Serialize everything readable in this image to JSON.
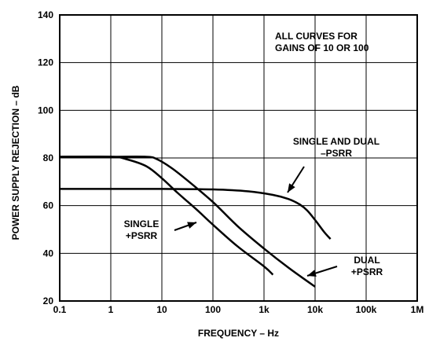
{
  "chart_data": {
    "type": "line",
    "title": "",
    "xlabel": "FREQUENCY – Hz",
    "ylabel": "POWER SUPPLY REJECTION – dB",
    "x_scale": "log",
    "xlim": [
      0.1,
      1000000
    ],
    "ylim": [
      20,
      140
    ],
    "grid": true,
    "x_ticks": [
      {
        "value": 0.1,
        "label": "0.1"
      },
      {
        "value": 1,
        "label": "1"
      },
      {
        "value": 10,
        "label": "10"
      },
      {
        "value": 100,
        "label": "100"
      },
      {
        "value": 1000,
        "label": "1k"
      },
      {
        "value": 10000,
        "label": "10k"
      },
      {
        "value": 100000,
        "label": "100k"
      },
      {
        "value": 1000000,
        "label": "1M"
      }
    ],
    "y_ticks": [
      {
        "value": 20,
        "label": "20"
      },
      {
        "value": 40,
        "label": "40"
      },
      {
        "value": 60,
        "label": "60"
      },
      {
        "value": 80,
        "label": "80"
      },
      {
        "value": 100,
        "label": "100"
      },
      {
        "value": 120,
        "label": "120"
      },
      {
        "value": 140,
        "label": "140"
      }
    ],
    "note_lines": [
      "ALL CURVES FOR",
      "GAINS OF 10 OR 100"
    ],
    "series": [
      {
        "label_lines": [
          "SINGLE AND DUAL",
          "–PSRR"
        ],
        "points": [
          [
            0.1,
            67
          ],
          [
            1,
            67
          ],
          [
            10,
            67
          ],
          [
            100,
            66.8
          ],
          [
            500,
            66
          ],
          [
            1500,
            64.5
          ],
          [
            3000,
            62.8
          ],
          [
            5000,
            60.5
          ],
          [
            7000,
            58
          ],
          [
            10000,
            54
          ],
          [
            15000,
            49
          ],
          [
            20000,
            46
          ]
        ]
      },
      {
        "label_lines": [
          "SINGLE",
          "+PSRR"
        ],
        "points": [
          [
            0.1,
            80.5
          ],
          [
            1,
            80.5
          ],
          [
            2,
            79.5
          ],
          [
            5,
            76.5
          ],
          [
            10,
            71.5
          ],
          [
            20,
            65.5
          ],
          [
            50,
            58
          ],
          [
            100,
            52
          ],
          [
            300,
            43
          ],
          [
            1000,
            34.5
          ],
          [
            1500,
            31
          ]
        ]
      },
      {
        "label_lines": [
          "DUAL",
          "+PSRR"
        ],
        "points": [
          [
            0.1,
            80.5
          ],
          [
            1,
            80.5
          ],
          [
            5,
            80.5
          ],
          [
            8,
            79.5
          ],
          [
            15,
            76
          ],
          [
            30,
            71
          ],
          [
            100,
            61.5
          ],
          [
            300,
            51.5
          ],
          [
            1000,
            42
          ],
          [
            3000,
            34
          ],
          [
            10000,
            26
          ]
        ]
      }
    ]
  }
}
